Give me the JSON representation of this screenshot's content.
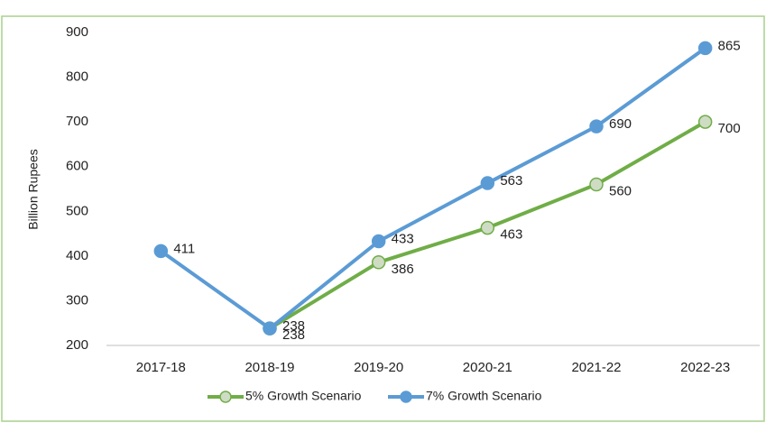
{
  "chart_data": {
    "type": "line",
    "y_label": "Billion Rupees",
    "categories": [
      "2017-18",
      "2018-19",
      "2019-20",
      "2020-21",
      "2021-22",
      "2022-23"
    ],
    "series": [
      {
        "name": "5% Growth Scenario",
        "color": "#70ad47",
        "marker_fill": "#cfdcc4",
        "values": [
          null,
          238,
          386,
          463,
          560,
          700
        ]
      },
      {
        "name": "7% Growth Scenario",
        "color": "#5b9bd5",
        "marker_fill": "#5b9bd5",
        "values": [
          411,
          238,
          433,
          563,
          690,
          865
        ]
      }
    ],
    "ylim": [
      200,
      900
    ],
    "yticks": [
      200,
      300,
      400,
      500,
      600,
      700,
      800,
      900
    ],
    "grid": false,
    "legend": "bottom"
  }
}
